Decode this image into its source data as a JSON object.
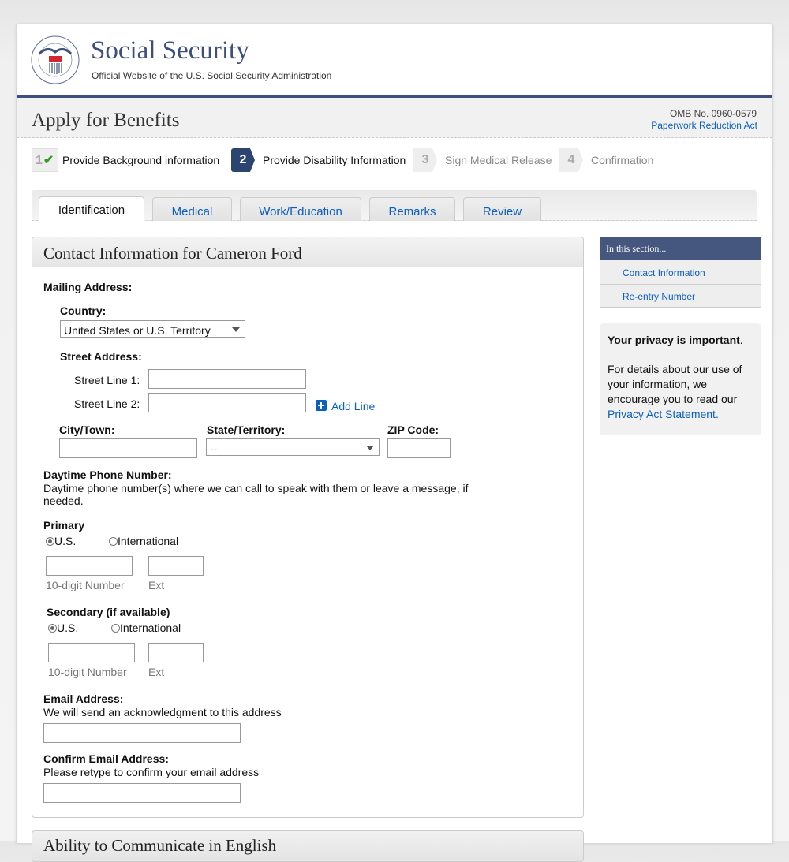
{
  "header": {
    "agency_name": "Social Security",
    "tagline": "Official Website of the U.S. Social Security Administration",
    "seal_text": "SOCIAL SECURITY ADMINISTRATION USA"
  },
  "title_bar": {
    "title": "Apply for Benefits",
    "omb": "OMB No. 0960-0579",
    "paperwork_link": "Paperwork Reduction Act"
  },
  "steps": [
    {
      "number": "1",
      "label": "Provide Background information",
      "status": "complete"
    },
    {
      "number": "2",
      "label": "Provide Disability Information",
      "status": "current"
    },
    {
      "number": "3",
      "label": "Sign Medical Release",
      "status": "upcoming"
    },
    {
      "number": "4",
      "label": "Confirmation",
      "status": "upcoming"
    }
  ],
  "tabs": [
    {
      "label": "Identification",
      "active": true
    },
    {
      "label": "Medical"
    },
    {
      "label": "Work/Education"
    },
    {
      "label": "Remarks"
    },
    {
      "label": "Review"
    }
  ],
  "form": {
    "section_title": "Contact Information for Cameron Ford",
    "mailing_address": "Mailing Address:",
    "country_label": "Country:",
    "country_value": "United States or U.S. Territory",
    "street_label": "Street Address:",
    "street1_label": "Street Line 1:",
    "street2_label": "Street Line 2:",
    "add_line": "Add Line",
    "city_label": "City/Town:",
    "state_label": "State/Territory:",
    "state_value": "--",
    "zip_label": "ZIP Code:",
    "phone_label": "Daytime Phone Number:",
    "phone_desc": "Daytime phone number(s) where we can call to speak with them or leave a message, if needed.",
    "primary_label": "Primary",
    "secondary_label": "Secondary (if available)",
    "us": "U.S.",
    "international": "International",
    "number_hint": "10-digit Number",
    "ext_hint": "Ext",
    "email_label": "Email Address:",
    "email_desc": "We will send an acknowledgment to this address",
    "confirm_email_label": "Confirm Email Address:",
    "confirm_email_desc": "Please retype to confirm your email address",
    "next_section_title": "Ability to Communicate in English"
  },
  "sidebar": {
    "title": "In this section...",
    "items": [
      "Contact Information",
      "Re-entry Number"
    ],
    "privacy_title": "Your privacy is important",
    "privacy_text": "For details about our use of your information, we encourage you to read our",
    "privacy_link": "Privacy Act Statement."
  },
  "colors": {
    "brand": "#3d4f7c",
    "link": "#0a5fbf",
    "step_current": "#2b4470"
  }
}
